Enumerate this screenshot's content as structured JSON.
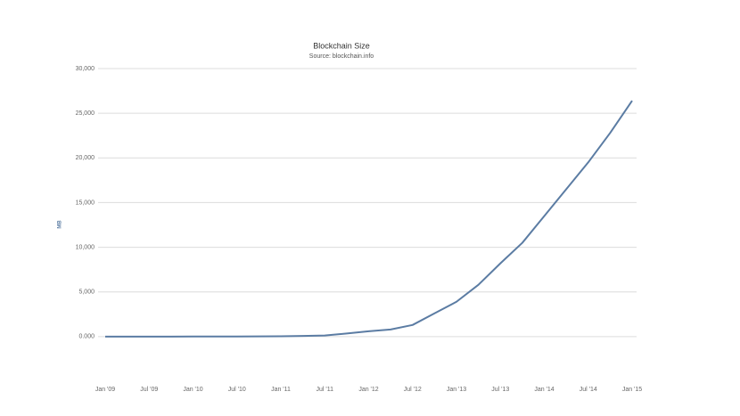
{
  "chart_data": {
    "type": "line",
    "title": "Blockchain Size",
    "subtitle": "Source: blockchain.info",
    "y_label": "MB",
    "x": [
      "2009-01",
      "2009-04",
      "2009-07",
      "2009-10",
      "2010-01",
      "2010-04",
      "2010-07",
      "2010-10",
      "2011-01",
      "2011-04",
      "2011-07",
      "2011-10",
      "2012-01",
      "2012-04",
      "2012-07",
      "2012-10",
      "2013-01",
      "2013-04",
      "2013-07",
      "2013-10",
      "2014-01",
      "2014-04",
      "2014-07",
      "2014-10",
      "2015-01"
    ],
    "series": [
      {
        "name": "Blockchain Size",
        "color": "#5b7ca3",
        "values": [
          0,
          1,
          2,
          3,
          5,
          8,
          12,
          20,
          40,
          70,
          120,
          350,
          600,
          800,
          1300,
          2600,
          3900,
          5800,
          8200,
          10500,
          13500,
          16500,
          19500,
          22800,
          26400
        ]
      }
    ],
    "xlim": [
      "2009-01",
      "2015-01"
    ],
    "xticks": [
      {
        "value": "2009-01",
        "label": "Jan '09"
      },
      {
        "value": "2009-07",
        "label": "Jul '09"
      },
      {
        "value": "2010-01",
        "label": "Jan '10"
      },
      {
        "value": "2010-07",
        "label": "Jul '10"
      },
      {
        "value": "2011-01",
        "label": "Jan '11"
      },
      {
        "value": "2011-07",
        "label": "Jul '11"
      },
      {
        "value": "2012-01",
        "label": "Jan '12"
      },
      {
        "value": "2012-07",
        "label": "Jul '12"
      },
      {
        "value": "2013-01",
        "label": "Jan '13"
      },
      {
        "value": "2013-07",
        "label": "Jul '13"
      },
      {
        "value": "2014-01",
        "label": "Jan '14"
      },
      {
        "value": "2014-07",
        "label": "Jul '14"
      },
      {
        "value": "2015-01",
        "label": "Jan '15"
      }
    ],
    "ylim": [
      -5000,
      30000
    ],
    "yticks": [
      {
        "value": 0,
        "label": "0.000"
      },
      {
        "value": 5000,
        "label": "5,000"
      },
      {
        "value": 10000,
        "label": "10,000"
      },
      {
        "value": 15000,
        "label": "15,000"
      },
      {
        "value": 20000,
        "label": "20,000"
      },
      {
        "value": 25000,
        "label": "25,000"
      },
      {
        "value": 30000,
        "label": "30,000"
      }
    ],
    "grid": true
  }
}
